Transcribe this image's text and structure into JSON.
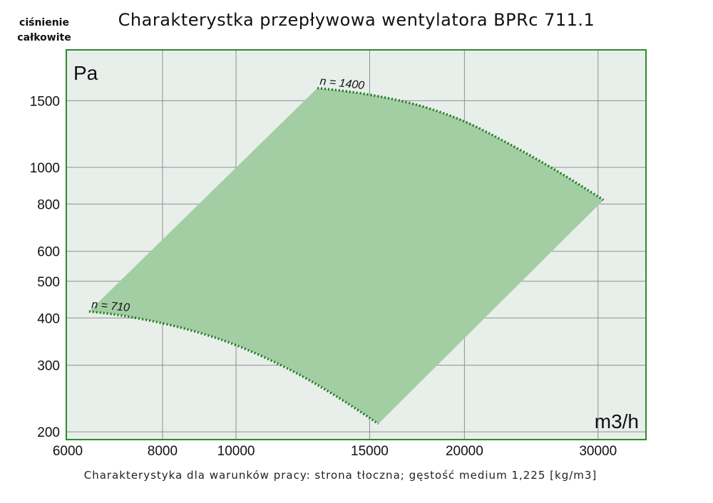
{
  "header": {
    "title": "Charakterystka przepływowa wentylatora BPRc 711.1",
    "y_note_line1": "ciśnienie",
    "y_note_line2": "całkowite",
    "footer": "Charakterystyka dla warunków pracy: strona tłoczna; gęstość medium 1,225 [kg/m3]"
  },
  "colors": {
    "plot_bg": "#e8efeb",
    "border": "#2e8b2e",
    "grid": "#8f8f8f",
    "area_fill": "#a3cea3",
    "curve": "#1f7a1f"
  },
  "chart_data": {
    "type": "area",
    "title": "Charakterystka przepływowa wentylatora BPRc 711.1",
    "xlabel": "m3/h",
    "ylabel": "Pa",
    "x_scale": "log",
    "y_scale": "log",
    "xlim": [
      6000,
      35000
    ],
    "ylim": [
      195,
      2000
    ],
    "x_ticks": [
      6000,
      8000,
      10000,
      15000,
      20000,
      30000
    ],
    "x_tick_labels": [
      "6000",
      "8000",
      "10000",
      "15000",
      "20000",
      "30000"
    ],
    "y_ticks": [
      200,
      300,
      400,
      500,
      600,
      800,
      1000,
      1500
    ],
    "y_tick_labels": [
      "200",
      "300",
      "400",
      "500",
      "600",
      "800",
      "1000",
      "1500"
    ],
    "grid": true,
    "series": [
      {
        "name": "n = 1400",
        "x": [
          12800,
          14000,
          15500,
          17500,
          20000,
          23000,
          26500,
          30500
        ],
        "y": [
          1620,
          1590,
          1540,
          1460,
          1330,
          1150,
          980,
          820
        ]
      },
      {
        "name": "n = 710",
        "x": [
          6400,
          7000,
          8000,
          9000,
          10000,
          11500,
          13000,
          14500,
          15400
        ],
        "y": [
          416,
          408,
          388,
          365,
          340,
          300,
          262,
          228,
          210
        ]
      }
    ],
    "operating_area": [
      [
        6400,
        416
      ],
      [
        12800,
        1620
      ],
      [
        14000,
        1590
      ],
      [
        15500,
        1540
      ],
      [
        17500,
        1460
      ],
      [
        20000,
        1330
      ],
      [
        23000,
        1150
      ],
      [
        26500,
        980
      ],
      [
        30500,
        820
      ],
      [
        15400,
        210
      ],
      [
        14500,
        228
      ],
      [
        13000,
        262
      ],
      [
        11500,
        300
      ],
      [
        10000,
        340
      ],
      [
        9000,
        365
      ],
      [
        8000,
        388
      ],
      [
        7000,
        408
      ],
      [
        6400,
        416
      ]
    ]
  }
}
